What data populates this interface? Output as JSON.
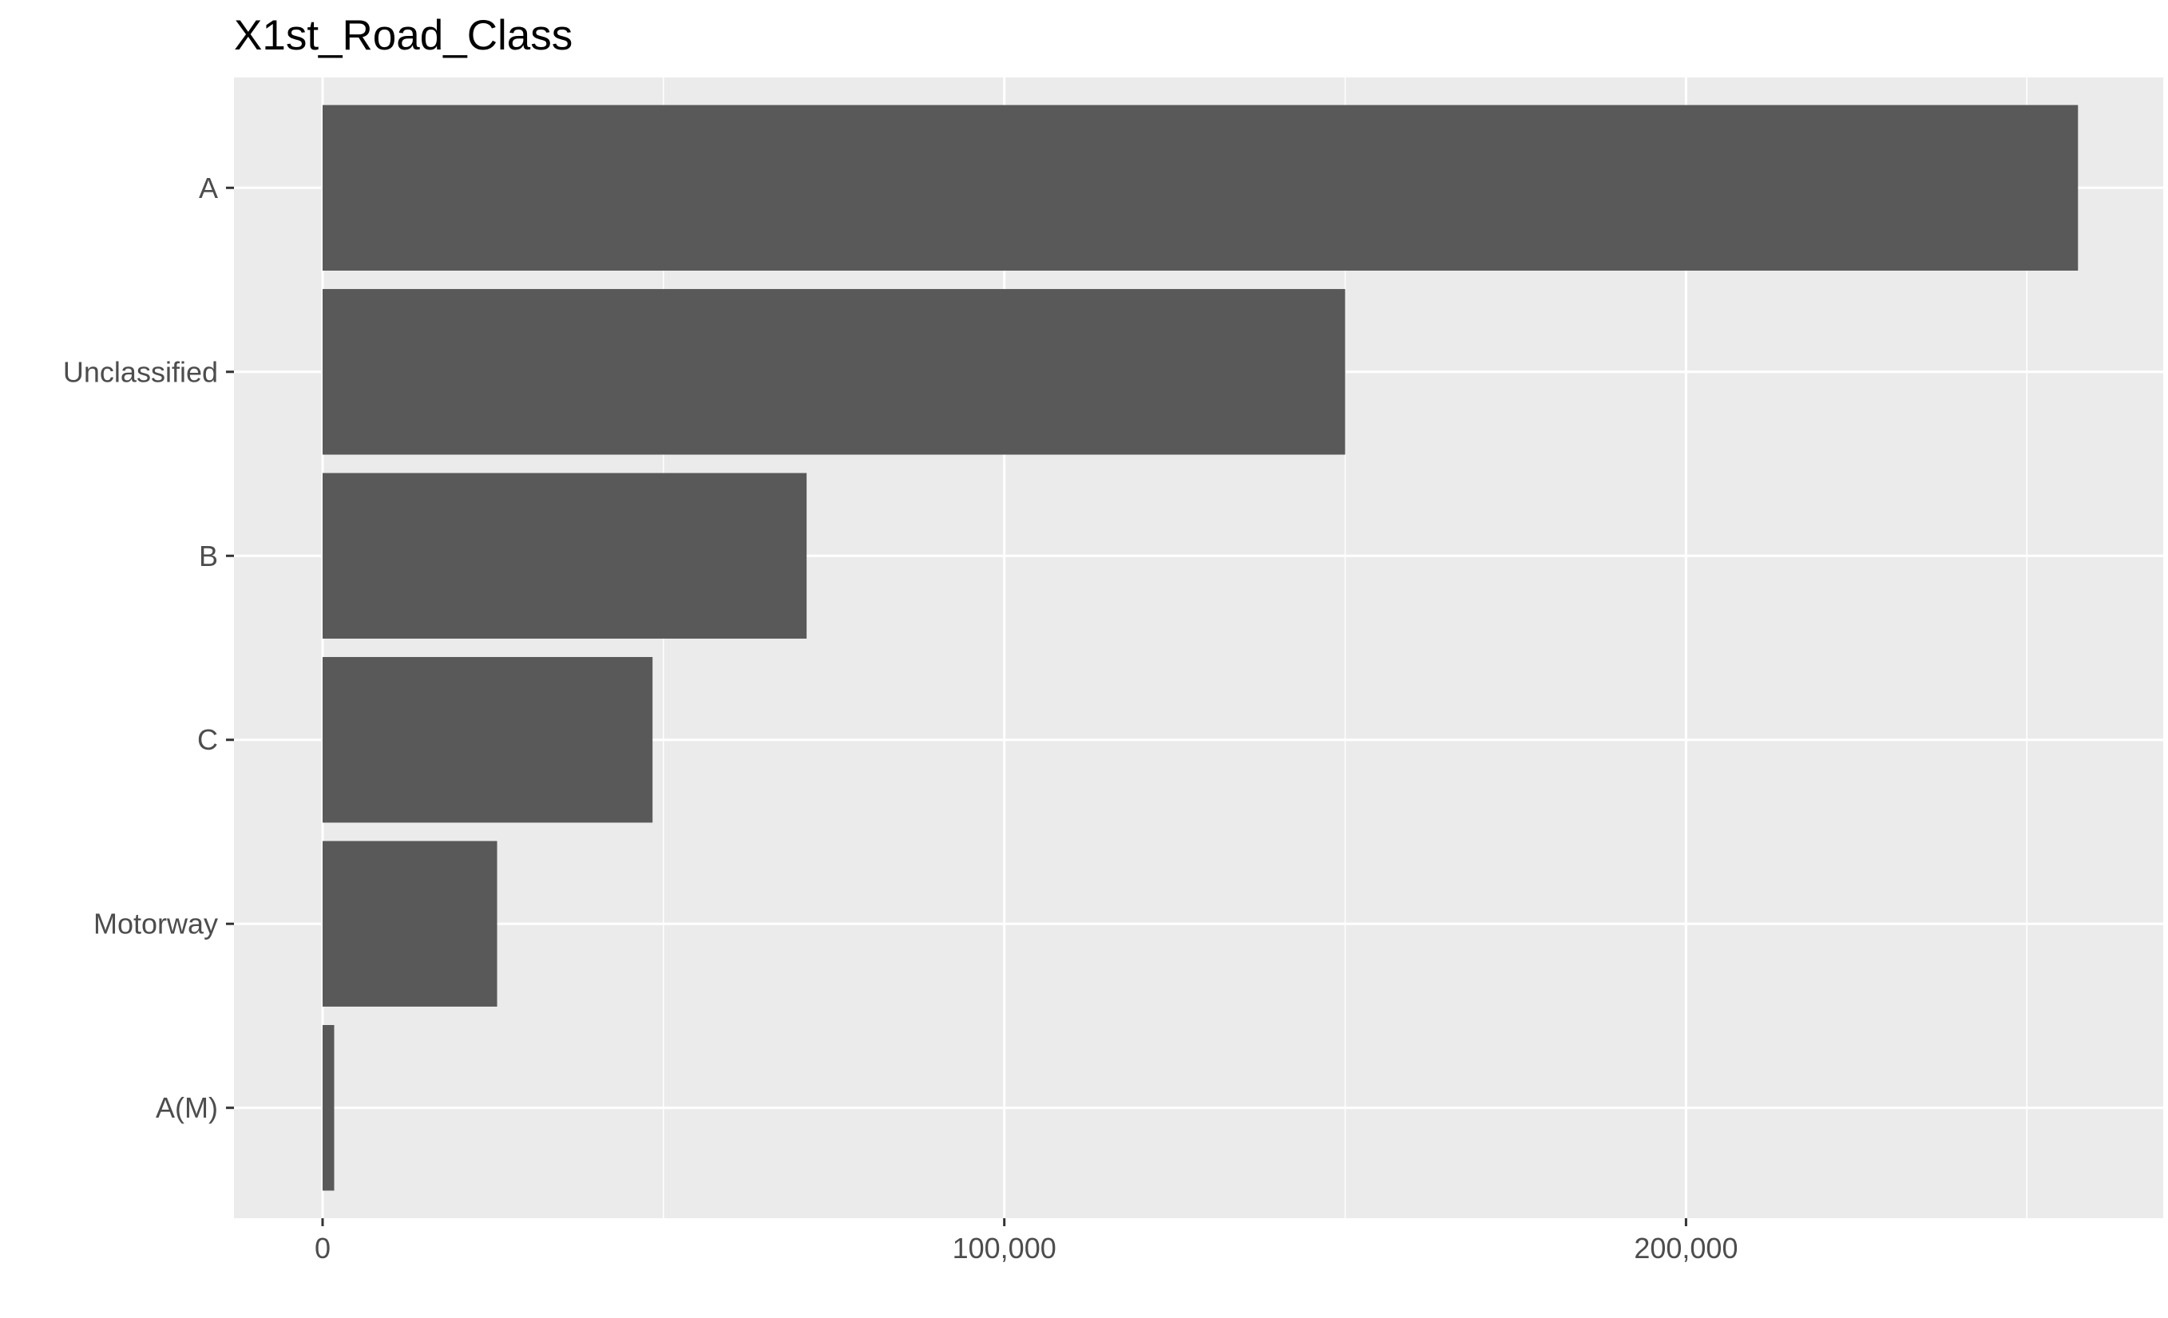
{
  "chart_data": {
    "type": "bar",
    "orientation": "horizontal",
    "title": "X1st_Road_Class",
    "xlabel": "",
    "ylabel": "",
    "categories": [
      "A",
      "Unclassified",
      "B",
      "C",
      "Motorway",
      "A(M)"
    ],
    "values": [
      257500,
      150000,
      71000,
      48400,
      25600,
      1700
    ],
    "x_ticks": [
      0,
      100000,
      200000
    ],
    "x_tick_labels": [
      "0",
      "100,000",
      "200,000"
    ],
    "xlim": [
      -13000,
      270000
    ],
    "grid": true,
    "legend": "none",
    "colors": {
      "bar": "#595959",
      "panel": "#EBEBEB",
      "grid": "#FFFFFF",
      "tick": "#333333",
      "tick_label": "#4D4D4D",
      "title": "#000000"
    }
  }
}
